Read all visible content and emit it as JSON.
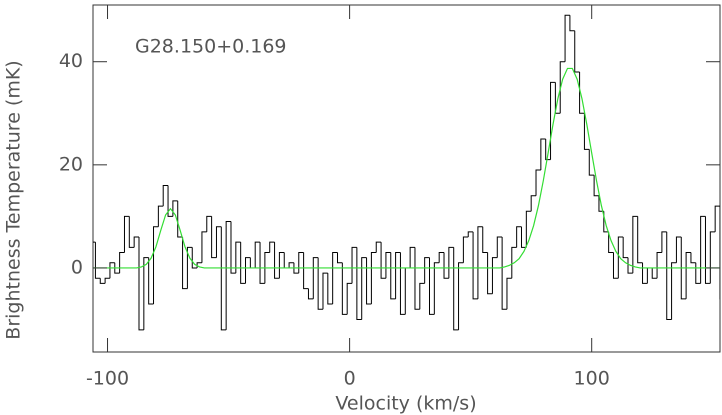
{
  "chart_data": {
    "type": "line",
    "annotation": "G28.150+0.169",
    "xlabel": "Velocity (km/s)",
    "ylabel": "Brightness Temperature (mK)",
    "xlim": [
      -106,
      153
    ],
    "xticks": [
      -100,
      0,
      100
    ],
    "ylim": [
      -16.3,
      51
    ],
    "yticks": [
      0,
      20,
      40
    ],
    "x": [
      -108,
      -106,
      -104,
      -102,
      -100,
      -98,
      -96,
      -94,
      -92,
      -90,
      -88,
      -86,
      -84,
      -82,
      -80,
      -78,
      -76,
      -74,
      -72,
      -70,
      -68,
      -66,
      -64,
      -62,
      -60,
      -58,
      -56,
      -54,
      -52,
      -50,
      -48,
      -46,
      -44,
      -42,
      -40,
      -38,
      -36,
      -34,
      -32,
      -30,
      -28,
      -26,
      -24,
      -22,
      -20,
      -18,
      -16,
      -14,
      -12,
      -10,
      -8,
      -6,
      -4,
      -2,
      0,
      2,
      4,
      6,
      8,
      10,
      12,
      14,
      16,
      18,
      20,
      22,
      24,
      26,
      28,
      30,
      32,
      34,
      36,
      38,
      40,
      42,
      44,
      46,
      48,
      50,
      52,
      54,
      56,
      58,
      60,
      62,
      64,
      66,
      68,
      70,
      72,
      74,
      76,
      78,
      80,
      82,
      84,
      86,
      88,
      90,
      92,
      94,
      96,
      98,
      100,
      102,
      104,
      106,
      108,
      110,
      112,
      114,
      116,
      118,
      120,
      122,
      124,
      126,
      128,
      130,
      132,
      134,
      136,
      138,
      140,
      142,
      144,
      146,
      148,
      150,
      152,
      154
    ],
    "series": [
      {
        "color": "#000000",
        "drawstyle": "steps-mid",
        "values": [
          2,
          5,
          -2,
          -3,
          -2,
          1,
          -1,
          3,
          10,
          4,
          6,
          -12,
          2,
          -7,
          8,
          12,
          16,
          10,
          13,
          6,
          -4,
          4,
          0,
          1,
          7,
          10,
          2,
          8,
          -12,
          9,
          -1,
          5,
          -3,
          2,
          0,
          5,
          -3,
          3,
          5,
          -2,
          3,
          0,
          1,
          -1,
          3,
          -4,
          -6,
          2,
          -8,
          -1,
          -7,
          3,
          1,
          -9,
          -3,
          4,
          -10,
          2,
          -7,
          3,
          5,
          -2,
          3,
          -6,
          3,
          -9,
          0,
          4,
          -8,
          -3,
          2,
          -9,
          1,
          3,
          -2,
          4,
          -12,
          1,
          6,
          7,
          -6,
          8,
          3,
          -5,
          2,
          6,
          -8,
          -2,
          4,
          8,
          4,
          11,
          14,
          19,
          25,
          21,
          36,
          30,
          40,
          49,
          46,
          38,
          30,
          23,
          18,
          14,
          11,
          7,
          3,
          -2,
          6,
          2,
          -1,
          10,
          1,
          -3,
          0,
          -2,
          3,
          7,
          -10,
          1,
          6,
          -6,
          3,
          1,
          -3,
          10,
          -3,
          7,
          12,
          -6
        ]
      },
      {
        "color": "#33dd33",
        "drawstyle": "default",
        "values": [
          0,
          0,
          0,
          0,
          0,
          0,
          0,
          0,
          0,
          0,
          0,
          0.2,
          0.7,
          1.9,
          4.1,
          7.3,
          10.3,
          11.5,
          10.3,
          7.3,
          4.1,
          1.9,
          0.7,
          0.2,
          0,
          0,
          0,
          0,
          0,
          0,
          0,
          0,
          0,
          0,
          0,
          0,
          0,
          0,
          0,
          0,
          0,
          0,
          0,
          0,
          0,
          0,
          0,
          0,
          0,
          0,
          0,
          0,
          0,
          0,
          0,
          0,
          0,
          0,
          0,
          0,
          0,
          0,
          0,
          0,
          0,
          0,
          0,
          0,
          0,
          0,
          0,
          0,
          0,
          0,
          0,
          0,
          0,
          0,
          0,
          0,
          0,
          0,
          0,
          0,
          0,
          0,
          0.2,
          0.5,
          1.0,
          1.8,
          3.2,
          5.3,
          8.2,
          12.1,
          16.9,
          22.3,
          27.8,
          32.8,
          36.6,
          38.7,
          38.7,
          36.6,
          32.8,
          27.8,
          22.3,
          16.9,
          12.1,
          8.2,
          5.3,
          3.2,
          1.8,
          1.0,
          0.5,
          0.2,
          0,
          0,
          0,
          0,
          0,
          0,
          0,
          0,
          0,
          0,
          0,
          0,
          0,
          0,
          0,
          0,
          0,
          0
        ]
      }
    ]
  }
}
